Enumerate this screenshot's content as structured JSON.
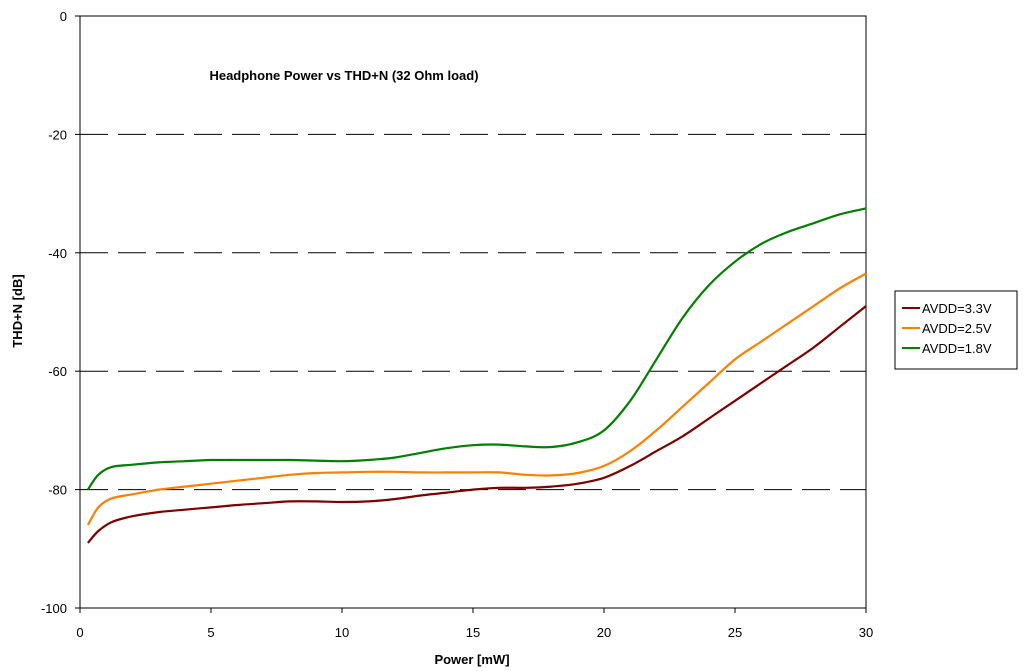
{
  "chart_data": {
    "type": "line",
    "title": "Headphone Power vs THD+N (32 Ohm load)",
    "xlabel": "Power [mW]",
    "ylabel": "THD+N [dB]",
    "xlim": [
      0,
      30
    ],
    "ylim": [
      -100,
      0
    ],
    "x_ticks": [
      "0",
      "5",
      "10",
      "15",
      "20",
      "25",
      "30"
    ],
    "y_ticks": [
      "0",
      "-20",
      "-40",
      "-60",
      "-80",
      "-100"
    ],
    "grid": "horizontal dashed",
    "legend_position": "right",
    "series": [
      {
        "name": "AVDD=3.3V",
        "color": "#7f0000",
        "x": [
          0.3,
          0.7,
          1.2,
          2,
          3,
          4,
          5,
          6,
          7,
          8,
          9,
          10,
          11,
          12,
          13,
          14,
          15,
          16,
          17,
          18,
          19,
          20,
          21,
          22,
          23,
          24,
          25,
          26,
          27,
          28,
          29,
          30
        ],
        "y": [
          -89,
          -87,
          -85.5,
          -84.5,
          -83.8,
          -83.4,
          -83,
          -82.6,
          -82.3,
          -82,
          -82,
          -82.1,
          -82,
          -81.6,
          -81,
          -80.5,
          -80,
          -79.7,
          -79.7,
          -79.5,
          -79,
          -78,
          -76,
          -73.5,
          -71,
          -68,
          -65,
          -62,
          -59,
          -56,
          -52.5,
          -49
        ]
      },
      {
        "name": "AVDD=2.5V",
        "color": "#ff7f00",
        "x": [
          0.3,
          0.7,
          1.2,
          2,
          3,
          4,
          5,
          6,
          7,
          8,
          9,
          10,
          11,
          12,
          13,
          14,
          15,
          16,
          17,
          18,
          19,
          20,
          21,
          22,
          23,
          24,
          25,
          26,
          27,
          28,
          29,
          30
        ],
        "y": [
          -86,
          -83,
          -81.5,
          -80.8,
          -80,
          -79.5,
          -79,
          -78.5,
          -78,
          -77.5,
          -77.2,
          -77.1,
          -77,
          -77,
          -77.1,
          -77.1,
          -77.1,
          -77.1,
          -77.5,
          -77.6,
          -77.2,
          -76,
          -73.5,
          -70,
          -66,
          -62,
          -58,
          -55,
          -52,
          -49,
          -46,
          -43.5
        ]
      },
      {
        "name": "AVDD=1.8V",
        "color": "#007f00",
        "x": [
          0.3,
          0.7,
          1.2,
          2,
          3,
          4,
          5,
          6,
          7,
          8,
          9,
          10,
          11,
          12,
          13,
          14,
          15,
          16,
          17,
          18,
          19,
          20,
          21,
          22,
          23,
          24,
          25,
          26,
          27,
          28,
          29,
          30
        ],
        "y": [
          -80,
          -77.5,
          -76.2,
          -75.8,
          -75.4,
          -75.2,
          -75,
          -75,
          -75,
          -75,
          -75.1,
          -75.2,
          -75,
          -74.6,
          -73.8,
          -73,
          -72.5,
          -72.4,
          -72.7,
          -72.8,
          -72,
          -70,
          -65,
          -58,
          -51,
          -45.5,
          -41.5,
          -38.5,
          -36.5,
          -35,
          -33.5,
          -32.5
        ]
      }
    ]
  }
}
